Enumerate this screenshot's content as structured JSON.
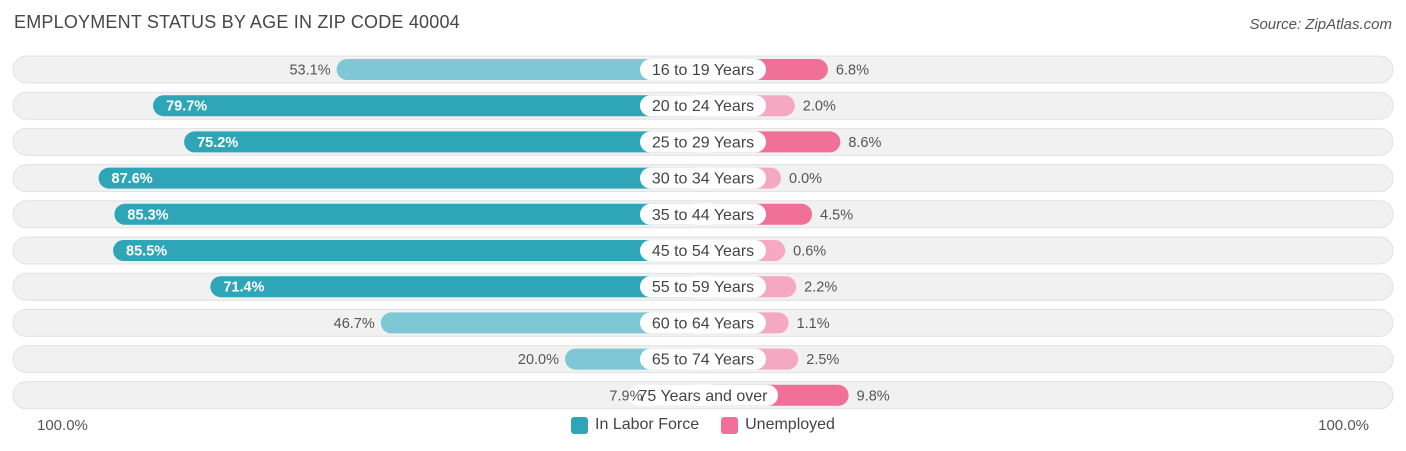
{
  "title": "EMPLOYMENT STATUS BY AGE IN ZIP CODE 40004",
  "source": "Source: ZipAtlas.com",
  "axis": {
    "left_label": "100.0%",
    "right_label": "100.0%"
  },
  "legend": [
    {
      "label": "In Labor Force",
      "color": "#2ea6b8"
    },
    {
      "label": "Unemployed",
      "color": "#f0709a"
    }
  ],
  "colors": {
    "labor_strong": "#2ea6b8",
    "labor_light": "#7dc8d4",
    "unemployed_strong": "#f0709a",
    "unemployed_light": "#f5a8c2",
    "row_background": "#f1f1f1"
  },
  "chart_data": {
    "type": "bar",
    "orientation": "horizontal-diverging",
    "categories": [
      "16 to 19 Years",
      "20 to 24 Years",
      "25 to 29 Years",
      "30 to 34 Years",
      "35 to 44 Years",
      "45 to 54 Years",
      "55 to 59 Years",
      "60 to 64 Years",
      "65 to 74 Years",
      "75 Years and over"
    ],
    "series": [
      {
        "name": "In Labor Force",
        "values": [
          53.1,
          79.7,
          75.2,
          87.6,
          85.3,
          85.5,
          71.4,
          46.7,
          20.0,
          7.9
        ],
        "labels": [
          "53.1%",
          "79.7%",
          "75.2%",
          "87.6%",
          "85.3%",
          "85.5%",
          "71.4%",
          "46.7%",
          "20.0%",
          "7.9%"
        ]
      },
      {
        "name": "Unemployed",
        "values": [
          6.8,
          2.0,
          8.6,
          0.0,
          4.5,
          0.6,
          2.2,
          1.1,
          2.5,
          9.8
        ],
        "labels": [
          "6.8%",
          "2.0%",
          "8.6%",
          "0.0%",
          "4.5%",
          "0.6%",
          "2.2%",
          "1.1%",
          "2.5%",
          "9.8%"
        ]
      }
    ],
    "xlim": [
      -100,
      100
    ]
  }
}
